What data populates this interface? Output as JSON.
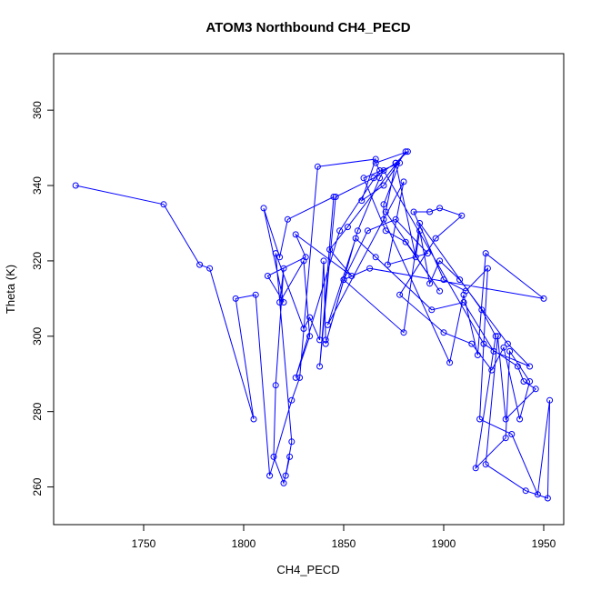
{
  "chart_data": {
    "type": "scatter",
    "title": "ATOM3 Northbound CH4_PECD",
    "xlabel": "CH4_PECD",
    "ylabel": "Theta (K)",
    "xlim": [
      1705,
      1960
    ],
    "ylim": [
      250,
      375
    ],
    "xticks": [
      1750,
      1800,
      1850,
      1900,
      1950
    ],
    "yticks": [
      260,
      280,
      300,
      320,
      340,
      360
    ],
    "grid": false,
    "series": [
      {
        "color": "#0000ff",
        "style": "line+points",
        "points": [
          [
            1716,
            340
          ],
          [
            1760,
            335
          ],
          [
            1778,
            319
          ],
          [
            1783,
            318
          ],
          [
            1805,
            278
          ],
          [
            1796,
            310
          ],
          [
            1806,
            311
          ],
          [
            1813,
            263
          ],
          [
            1824,
            283
          ],
          [
            1828,
            289
          ],
          [
            1837,
            345
          ],
          [
            1866,
            347
          ],
          [
            1859,
            336
          ],
          [
            1870,
            340
          ],
          [
            1881,
            349
          ],
          [
            1852,
            329
          ],
          [
            1843,
            323
          ],
          [
            1854,
            316
          ],
          [
            1826,
            327
          ],
          [
            1831,
            321
          ],
          [
            1812,
            316
          ],
          [
            1820,
            309
          ],
          [
            1810,
            334
          ],
          [
            1818,
            321
          ],
          [
            1822,
            331
          ],
          [
            1845,
            337
          ],
          [
            1838,
            292
          ],
          [
            1846,
            337
          ],
          [
            1865,
            342
          ],
          [
            1876,
            346
          ],
          [
            1871,
            333
          ],
          [
            1898,
            312
          ],
          [
            1881,
            325
          ],
          [
            1871,
            328
          ],
          [
            1860,
            342
          ],
          [
            1878,
            346
          ],
          [
            1870,
            335
          ],
          [
            1870,
            331
          ],
          [
            1903,
            293
          ],
          [
            1910,
            311
          ],
          [
            1917,
            295
          ],
          [
            1921,
            322
          ],
          [
            1950,
            310
          ],
          [
            1863,
            318
          ],
          [
            1850,
            315
          ],
          [
            1841,
            298
          ],
          [
            1857,
            328
          ],
          [
            1868,
            342
          ],
          [
            1870,
            344
          ],
          [
            1920,
            298
          ],
          [
            1937,
            292
          ],
          [
            1940,
            288
          ],
          [
            1946,
            286
          ],
          [
            1931,
            278
          ],
          [
            1927,
            300
          ],
          [
            1921,
            266
          ],
          [
            1941,
            259
          ],
          [
            1952,
            257
          ],
          [
            1953,
            283
          ],
          [
            1947,
            258
          ],
          [
            1934,
            274
          ],
          [
            1918,
            278
          ],
          [
            1922,
            318
          ],
          [
            1911,
            312
          ],
          [
            1900,
            315
          ],
          [
            1885,
            333
          ],
          [
            1893,
            333
          ],
          [
            1898,
            334
          ],
          [
            1909,
            332
          ],
          [
            1896,
            326
          ],
          [
            1878,
            311
          ],
          [
            1900,
            301
          ],
          [
            1914,
            298
          ],
          [
            1924,
            291
          ],
          [
            1930,
            297
          ],
          [
            1938,
            278
          ],
          [
            1943,
            288
          ],
          [
            1933,
            296
          ],
          [
            1931,
            273
          ],
          [
            1916,
            265
          ],
          [
            1926,
            300
          ],
          [
            1919,
            307
          ],
          [
            1888,
            330
          ],
          [
            1880,
            301
          ],
          [
            1850,
            315
          ],
          [
            1862,
            328
          ],
          [
            1876,
            331
          ],
          [
            1892,
            322
          ],
          [
            1872,
            319
          ],
          [
            1880,
            341
          ],
          [
            1842,
            303
          ],
          [
            1856,
            326
          ],
          [
            1866,
            321
          ],
          [
            1894,
            307
          ],
          [
            1910,
            309
          ],
          [
            1925,
            296
          ],
          [
            1943,
            292
          ],
          [
            1932,
            298
          ],
          [
            1908,
            315
          ],
          [
            1898,
            320
          ],
          [
            1893,
            314
          ],
          [
            1888,
            328
          ],
          [
            1886,
            321
          ],
          [
            1876,
            346
          ],
          [
            1882,
            349
          ],
          [
            1866,
            346
          ],
          [
            1868,
            344
          ],
          [
            1848,
            328
          ],
          [
            1826,
            289
          ],
          [
            1833,
            300
          ],
          [
            1830,
            320
          ],
          [
            1818,
            309
          ],
          [
            1820,
            318
          ],
          [
            1816,
            287
          ],
          [
            1815,
            268
          ],
          [
            1820,
            261
          ],
          [
            1823,
            268
          ],
          [
            1821,
            263
          ],
          [
            1824,
            272
          ],
          [
            1816,
            322
          ],
          [
            1830,
            302
          ],
          [
            1833,
            305
          ],
          [
            1838,
            299
          ],
          [
            1840,
            320
          ],
          [
            1841,
            299
          ]
        ]
      }
    ]
  }
}
